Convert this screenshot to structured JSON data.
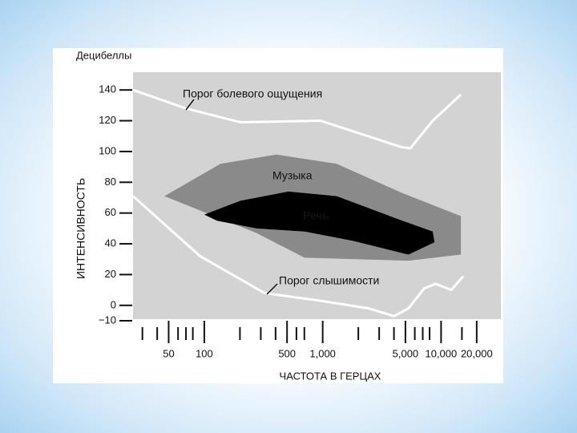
{
  "chart_data": {
    "type": "line",
    "y_unit_label": "Децибеллы",
    "ylabel": "ИНТЕНСИВНОСТЬ",
    "xlabel": "ЧАСТОТА В ГЕРЦАХ",
    "log_x": true,
    "xlim": [
      25,
      32000
    ],
    "ylim": [
      -10,
      150
    ],
    "yticks": [
      140,
      120,
      100,
      80,
      60,
      40,
      20,
      0,
      {
        "value": -10,
        "label": "−10"
      }
    ],
    "xticks": [
      {
        "value": 50,
        "label": "50"
      },
      {
        "value": 100,
        "label": "100"
      },
      {
        "value": 500,
        "label": "500"
      },
      {
        "value": 1000,
        "label": "1,000"
      },
      {
        "value": 5000,
        "label": "5,000"
      },
      {
        "value": 10000,
        "label": "10,000"
      },
      {
        "value": 20000,
        "label": "20,000"
      }
    ],
    "xminorticks": [
      30,
      40,
      60,
      70,
      80,
      200,
      300,
      400,
      600,
      700,
      2000,
      3000,
      4000,
      6000,
      7000,
      8000,
      15000
    ],
    "background": "#d3d3d3",
    "series": [
      {
        "name": "Музыка",
        "type": "area",
        "color": "#8a8a8a",
        "x": [
          46,
          137,
          407,
          1310,
          4700,
          14700,
          14700,
          5300,
          703,
          276
        ],
        "values": [
          71,
          92,
          98,
          92,
          73,
          58,
          33,
          29,
          31,
          47
        ]
      },
      {
        "name": "Речь",
        "type": "area",
        "color": "#000000",
        "x": [
          100,
          202,
          514,
          1310,
          4700,
          8500,
          8800,
          5300,
          1790,
          703,
          276,
          128
        ],
        "values": [
          59,
          68,
          74,
          71,
          55,
          48,
          41,
          33,
          42,
          48,
          50,
          55
        ]
      },
      {
        "name": "Порог болевого ощущения",
        "type": "line",
        "color": "#ffffff",
        "x": [
          25,
          70,
          202,
          960,
          4570,
          5500,
          8500,
          14700
        ],
        "values": [
          140,
          128,
          119,
          120,
          103,
          102,
          120,
          137
        ]
      },
      {
        "name": "Порог слышимости",
        "type": "line",
        "color": "#ffffff",
        "x": [
          25,
          92,
          322,
          960,
          2450,
          4000,
          5300,
          7200,
          9000,
          12200,
          15400
        ],
        "values": [
          71,
          32,
          8,
          3,
          -2,
          -7,
          -2,
          11,
          14,
          10,
          19
        ]
      }
    ]
  }
}
